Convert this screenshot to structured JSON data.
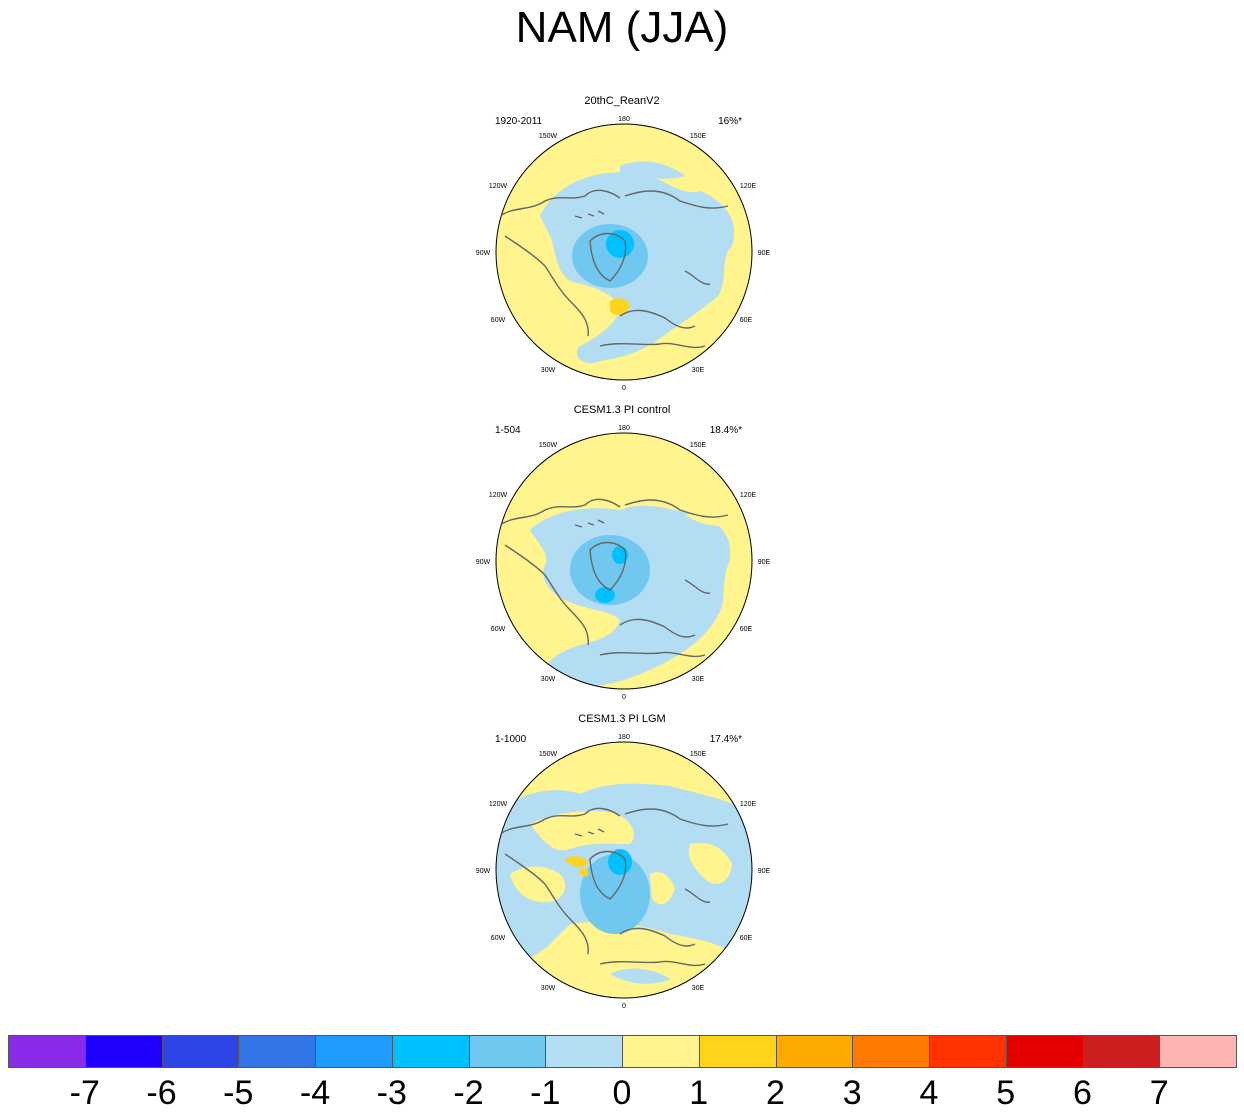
{
  "title": "NAM (JJA)",
  "panels": [
    {
      "name": "20thC_ReanV2",
      "period": "1920-2011",
      "variance": "16%*"
    },
    {
      "name": "CESM1.3 PI control",
      "period": "1-504",
      "variance": "18.4%*"
    },
    {
      "name": "CESM1.3 PI LGM",
      "period": "1-1000",
      "variance": "17.4%*"
    }
  ],
  "longitude_labels": {
    "top": "180",
    "bottom": "0",
    "upper_left": "150W",
    "upper_right": "150E",
    "mid_upper_left": "120W",
    "mid_upper_right": "120E",
    "left": "90W",
    "right": "90E",
    "mid_lower_left": "60W",
    "mid_lower_right": "60E",
    "lower_left": "30W",
    "lower_right": "30E"
  },
  "colorbar": {
    "colors": [
      "#8a2be8",
      "#1f00ff",
      "#2c45e4",
      "#3275e6",
      "#1e9bff",
      "#00c0ff",
      "#70c8f0",
      "#b3ddf2",
      "#fff48e",
      "#ffd21c",
      "#ffaa00",
      "#ff7b00",
      "#ff3200",
      "#e50000",
      "#cc1e1e",
      "#ffb4b4"
    ],
    "labels": [
      "-7",
      "-6",
      "-5",
      "-4",
      "-3",
      "-2",
      "-1",
      "0",
      "1",
      "2",
      "3",
      "4",
      "5",
      "6",
      "7"
    ]
  }
}
